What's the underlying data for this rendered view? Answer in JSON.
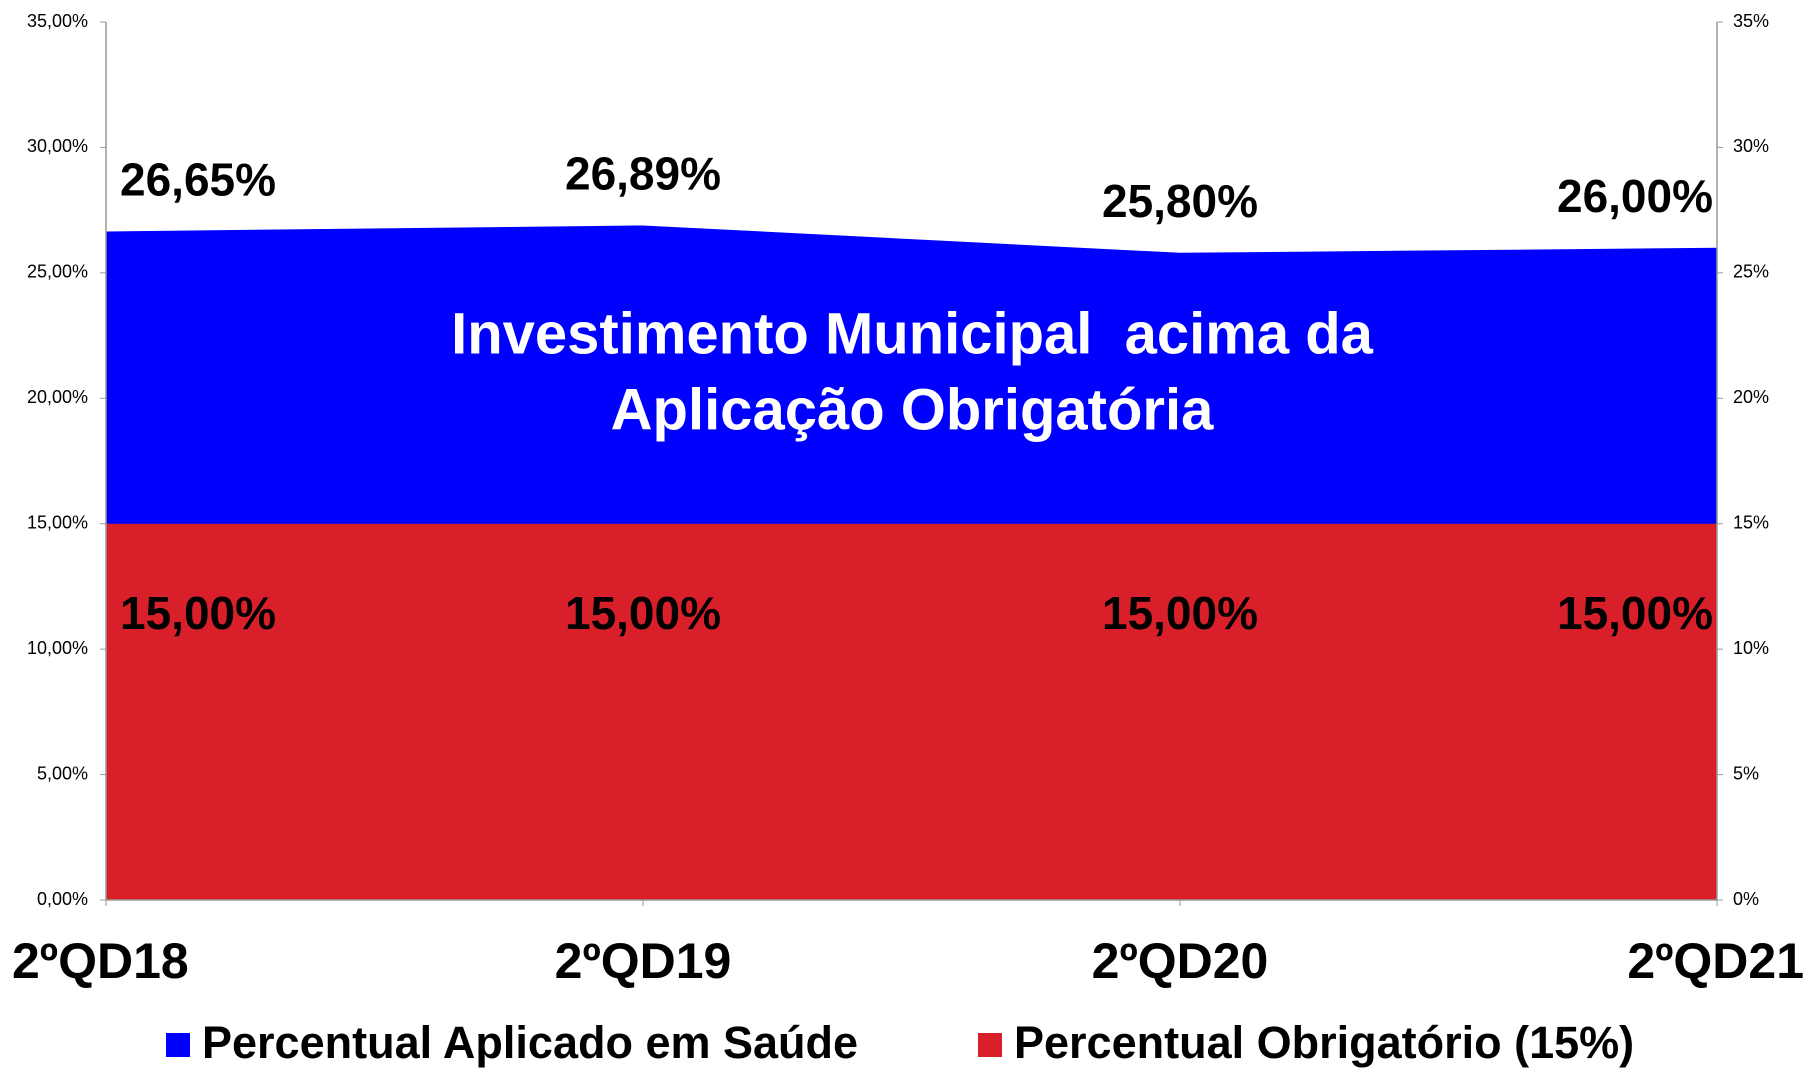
{
  "chart_data": {
    "type": "area",
    "categories": [
      "2ºQD18",
      "2ºQD19",
      "2ºQD20",
      "2ºQD21"
    ],
    "series": [
      {
        "name": "Percentual Aplicado em Saúde",
        "color": "#0000ff",
        "values": [
          26.65,
          26.89,
          25.8,
          26.0
        ],
        "value_labels": [
          "26,65%",
          "26,89%",
          "25,80%",
          "26,00%"
        ]
      },
      {
        "name": "Percentual Obrigatório (15%)",
        "color": "#d9202a",
        "values": [
          15,
          15,
          15,
          15
        ],
        "value_labels": [
          "15,00%",
          "15,00%",
          "15,00%",
          "15,00%"
        ]
      }
    ],
    "annotation": [
      "Investimento Municipal  acima da",
      "Aplicação Obrigatória"
    ],
    "ylim": [
      0,
      35
    ],
    "yticks": [
      {
        "value": 0,
        "label": "0,00%"
      },
      {
        "value": 5,
        "label": "5,00%"
      },
      {
        "value": 10,
        "label": "10,00%"
      },
      {
        "value": 15,
        "label": "15,00%"
      },
      {
        "value": 20,
        "label": "20,00%"
      },
      {
        "value": 25,
        "label": "25,00%"
      },
      {
        "value": 30,
        "label": "30,00%"
      },
      {
        "value": 35,
        "label": "35,00%"
      }
    ],
    "y2lim": [
      0,
      35
    ],
    "y2ticks": [
      {
        "value": 0,
        "label": "0%"
      },
      {
        "value": 5,
        "label": "5%"
      },
      {
        "value": 10,
        "label": "10%"
      },
      {
        "value": 15,
        "label": "15%"
      },
      {
        "value": 20,
        "label": "20%"
      },
      {
        "value": 25,
        "label": "25%"
      },
      {
        "value": 30,
        "label": "30%"
      },
      {
        "value": 35,
        "label": "35%"
      }
    ],
    "legend": "bottom"
  }
}
